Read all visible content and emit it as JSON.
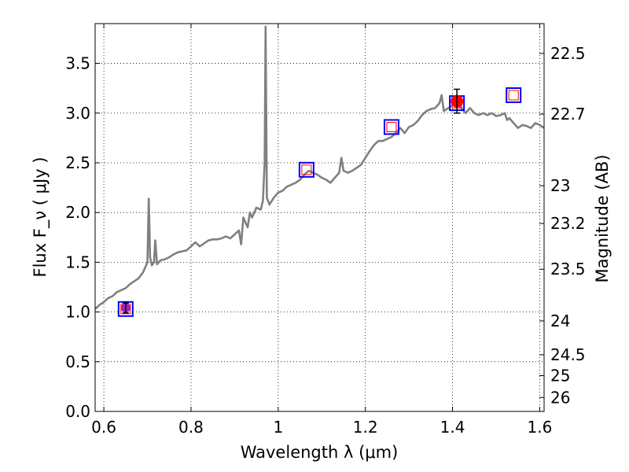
{
  "chart_data": {
    "type": "line",
    "xlabel": "Wavelength  λ (μm)",
    "ylabel": "Flux  F_ν  ( μJy )",
    "ylabel_right": "Magnitude (AB)",
    "xlim": [
      0.58,
      1.61
    ],
    "ylim": [
      0.0,
      3.9
    ],
    "x_ticks": [
      0.6,
      0.8,
      1.0,
      1.2,
      1.4,
      1.6
    ],
    "x_tick_labels": [
      "0.6",
      "0.8",
      "1",
      "1.2",
      "1.4",
      "1.6"
    ],
    "y_ticks": [
      0.0,
      0.5,
      1.0,
      1.5,
      2.0,
      2.5,
      3.0,
      3.5
    ],
    "y_tick_labels": [
      "0.0",
      "0.5",
      "1.0",
      "1.5",
      "2.0",
      "2.5",
      "3.0",
      "3.5"
    ],
    "right_ticks": [
      {
        "label": "22.5",
        "flux": 3.6
      },
      {
        "label": "22.7",
        "flux": 2.99
      },
      {
        "label": "23",
        "flux": 2.27
      },
      {
        "label": "23.2",
        "flux": 1.89
      },
      {
        "label": "23.5",
        "flux": 1.43
      },
      {
        "label": "24",
        "flux": 0.91
      },
      {
        "label": "24.5",
        "flux": 0.57
      },
      {
        "label": "25",
        "flux": 0.36
      },
      {
        "label": "26",
        "flux": 0.14
      }
    ],
    "grid": true,
    "colors": {
      "spectrum": "#808080",
      "square_edge": "#0000ff",
      "square_inner": "#ff0000",
      "point": "#ff0000",
      "point_violet": "#a020c0"
    },
    "series": [
      {
        "style": "line",
        "x": [
          0.58,
          0.59,
          0.6,
          0.61,
          0.62,
          0.63,
          0.64,
          0.65,
          0.66,
          0.67,
          0.68,
          0.69,
          0.695,
          0.7,
          0.703,
          0.706,
          0.71,
          0.715,
          0.718,
          0.722,
          0.73,
          0.74,
          0.75,
          0.76,
          0.77,
          0.78,
          0.79,
          0.8,
          0.81,
          0.82,
          0.83,
          0.84,
          0.85,
          0.86,
          0.87,
          0.88,
          0.89,
          0.9,
          0.91,
          0.915,
          0.92,
          0.93,
          0.935,
          0.94,
          0.95,
          0.96,
          0.965,
          0.969,
          0.971,
          0.974,
          0.98,
          0.99,
          1.0,
          1.01,
          1.02,
          1.03,
          1.04,
          1.05,
          1.06,
          1.07,
          1.08,
          1.09,
          1.1,
          1.11,
          1.12,
          1.13,
          1.14,
          1.145,
          1.15,
          1.16,
          1.17,
          1.18,
          1.19,
          1.2,
          1.21,
          1.22,
          1.23,
          1.24,
          1.25,
          1.26,
          1.27,
          1.28,
          1.29,
          1.3,
          1.31,
          1.32,
          1.33,
          1.34,
          1.35,
          1.36,
          1.37,
          1.375,
          1.38,
          1.39,
          1.4,
          1.41,
          1.42,
          1.43,
          1.44,
          1.45,
          1.46,
          1.47,
          1.48,
          1.49,
          1.5,
          1.51,
          1.52,
          1.525,
          1.53,
          1.54,
          1.55,
          1.56,
          1.57,
          1.58,
          1.59,
          1.6,
          1.61
        ],
        "y": [
          1.03,
          1.07,
          1.1,
          1.14,
          1.16,
          1.2,
          1.22,
          1.24,
          1.28,
          1.31,
          1.34,
          1.4,
          1.45,
          1.5,
          2.14,
          1.55,
          1.47,
          1.5,
          1.72,
          1.48,
          1.52,
          1.53,
          1.55,
          1.58,
          1.6,
          1.61,
          1.62,
          1.66,
          1.7,
          1.66,
          1.69,
          1.72,
          1.73,
          1.73,
          1.74,
          1.76,
          1.74,
          1.78,
          1.82,
          1.68,
          1.95,
          1.85,
          2.0,
          1.95,
          2.05,
          2.03,
          2.12,
          2.5,
          3.87,
          2.15,
          2.08,
          2.15,
          2.2,
          2.22,
          2.26,
          2.28,
          2.3,
          2.33,
          2.38,
          2.42,
          2.4,
          2.38,
          2.35,
          2.33,
          2.3,
          2.35,
          2.4,
          2.55,
          2.42,
          2.4,
          2.42,
          2.45,
          2.48,
          2.55,
          2.62,
          2.68,
          2.72,
          2.72,
          2.74,
          2.76,
          2.8,
          2.85,
          2.8,
          2.86,
          2.88,
          2.92,
          2.98,
          3.02,
          3.04,
          3.05,
          3.1,
          3.18,
          3.02,
          3.05,
          3.08,
          3.1,
          3.05,
          3.0,
          3.05,
          3.0,
          2.98,
          3.0,
          2.98,
          3.0,
          2.97,
          2.98,
          3.0,
          2.93,
          2.95,
          2.9,
          2.85,
          2.88,
          2.87,
          2.85,
          2.9,
          2.88,
          2.85
        ]
      },
      {
        "style": "open-square",
        "x": [
          0.65,
          1.065,
          1.26,
          1.41,
          1.54
        ],
        "y": [
          1.03,
          2.43,
          2.86,
          3.1,
          3.18
        ]
      },
      {
        "style": "point-errorbar",
        "x": [
          0.65,
          1.41
        ],
        "y": [
          1.04,
          3.12
        ],
        "yerr": [
          0.05,
          0.12
        ]
      }
    ]
  }
}
